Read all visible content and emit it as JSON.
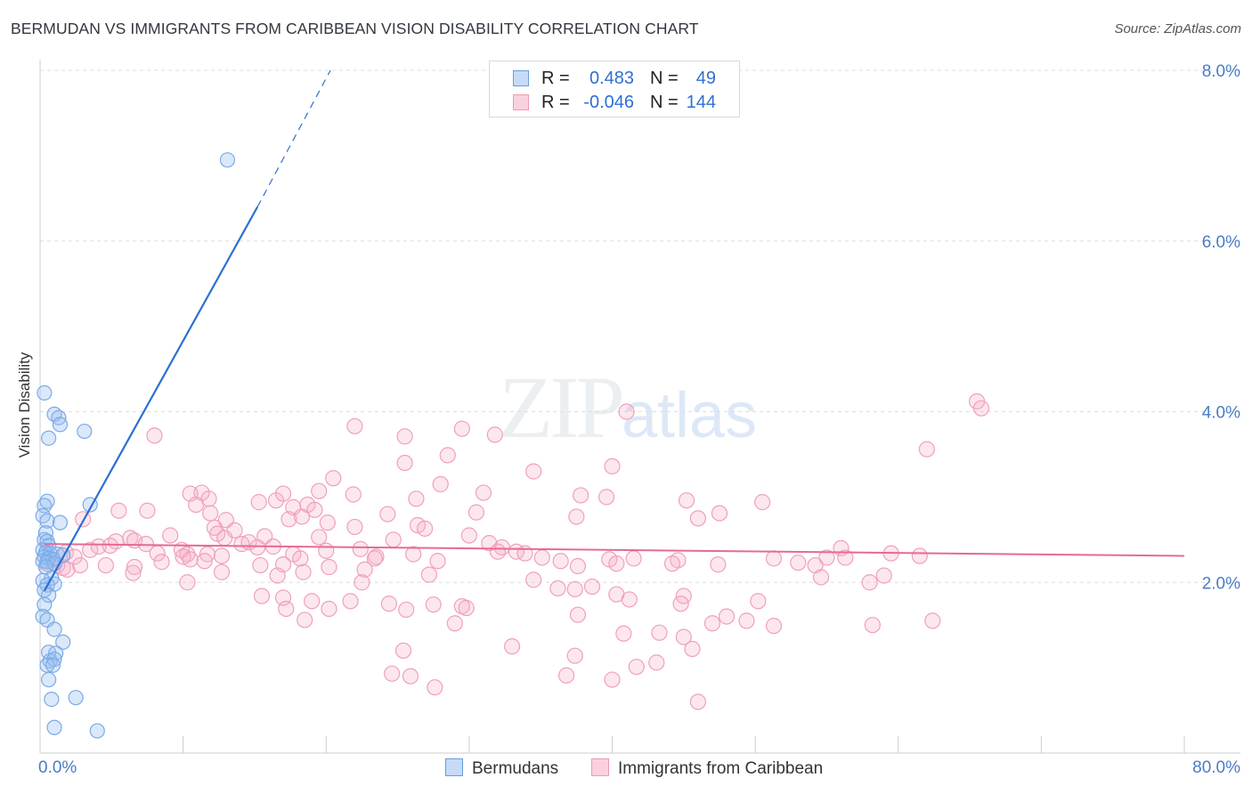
{
  "title": "BERMUDAN VS IMMIGRANTS FROM CARIBBEAN VISION DISABILITY CORRELATION CHART",
  "source": "Source: ZipAtlas.com",
  "watermark": {
    "zip": "ZIP",
    "atlas": "atlas"
  },
  "legend": {
    "rows": [
      {
        "r_label": "R =",
        "r_value": "0.483",
        "n_label": "N =",
        "n_value": "49"
      },
      {
        "r_label": "R =",
        "r_value": "-0.046",
        "n_label": "N =",
        "n_value": "144"
      }
    ]
  },
  "bottom_legend": {
    "series1": "Bermudans",
    "series2": "Immigrants from Caribbean"
  },
  "chart_data": {
    "type": "scatter",
    "title": "BERMUDAN VS IMMIGRANTS FROM CARIBBEAN VISION DISABILITY CORRELATION CHART",
    "xlabel": "",
    "ylabel": "Vision Disability",
    "xlim": [
      0,
      80
    ],
    "ylim": [
      0,
      8.0
    ],
    "x_tick_labels": [
      "0.0%",
      "80.0%"
    ],
    "y_ticks": [
      2.0,
      4.0,
      6.0,
      8.0
    ],
    "y_tick_labels": [
      "2.0%",
      "4.0%",
      "6.0%",
      "8.0%"
    ],
    "grid": true,
    "colors": {
      "series1": "#7aaae8",
      "series1_line": "#2c6fd1",
      "series2": "#f0a0ba",
      "series2_line": "#e56a96"
    },
    "series": [
      {
        "name": "Bermudans",
        "R": 0.483,
        "N": 49,
        "trend": {
          "x0": 0.3,
          "y0": 1.9,
          "x1": 15.2,
          "y1": 6.4,
          "dash_to_x": 20.3,
          "dash_to_y": 8.0
        },
        "points": [
          [
            13.1,
            6.95
          ],
          [
            0.3,
            4.22
          ],
          [
            1.0,
            3.97
          ],
          [
            1.3,
            3.93
          ],
          [
            1.4,
            3.85
          ],
          [
            3.1,
            3.77
          ],
          [
            0.6,
            3.69
          ],
          [
            0.5,
            2.95
          ],
          [
            0.3,
            2.9
          ],
          [
            3.5,
            2.91
          ],
          [
            0.2,
            2.78
          ],
          [
            0.5,
            2.72
          ],
          [
            1.4,
            2.7
          ],
          [
            0.4,
            2.58
          ],
          [
            0.3,
            2.5
          ],
          [
            0.5,
            2.48
          ],
          [
            0.6,
            2.43
          ],
          [
            0.2,
            2.38
          ],
          [
            0.4,
            2.35
          ],
          [
            0.7,
            2.34
          ],
          [
            1.2,
            2.33
          ],
          [
            1.6,
            2.32
          ],
          [
            0.3,
            2.3
          ],
          [
            0.6,
            2.28
          ],
          [
            0.9,
            2.27
          ],
          [
            0.2,
            2.25
          ],
          [
            0.5,
            2.24
          ],
          [
            1.0,
            2.22
          ],
          [
            0.4,
            2.18
          ],
          [
            0.8,
            2.05
          ],
          [
            0.2,
            2.02
          ],
          [
            1.0,
            1.98
          ],
          [
            0.5,
            1.97
          ],
          [
            0.3,
            1.91
          ],
          [
            0.6,
            1.85
          ],
          [
            0.3,
            1.74
          ],
          [
            0.2,
            1.6
          ],
          [
            0.5,
            1.56
          ],
          [
            1.0,
            1.45
          ],
          [
            1.6,
            1.3
          ],
          [
            0.6,
            1.18
          ],
          [
            1.1,
            1.17
          ],
          [
            0.7,
            1.08
          ],
          [
            1.0,
            1.1
          ],
          [
            0.5,
            1.03
          ],
          [
            0.9,
            1.03
          ],
          [
            0.6,
            0.86
          ],
          [
            0.8,
            0.63
          ],
          [
            2.5,
            0.65
          ],
          [
            1.0,
            0.3
          ],
          [
            4.0,
            0.26
          ]
        ]
      },
      {
        "name": "Immigrants from Caribbean",
        "R": -0.046,
        "N": 144,
        "trend": {
          "x0": 0.3,
          "y0": 2.45,
          "x1": 80,
          "y1": 2.31
        },
        "points": [
          [
            65.5,
            4.12
          ],
          [
            65.8,
            4.04
          ],
          [
            41.0,
            4.0
          ],
          [
            22.0,
            3.83
          ],
          [
            29.5,
            3.8
          ],
          [
            8.0,
            3.72
          ],
          [
            25.5,
            3.71
          ],
          [
            31.8,
            3.73
          ],
          [
            28.5,
            3.49
          ],
          [
            62.0,
            3.56
          ],
          [
            25.5,
            3.4
          ],
          [
            34.5,
            3.3
          ],
          [
            40.0,
            3.36
          ],
          [
            20.5,
            3.22
          ],
          [
            28.0,
            3.15
          ],
          [
            10.5,
            3.04
          ],
          [
            11.3,
            3.05
          ],
          [
            11.8,
            2.98
          ],
          [
            16.5,
            2.96
          ],
          [
            17.0,
            3.04
          ],
          [
            19.5,
            3.07
          ],
          [
            21.9,
            3.03
          ],
          [
            26.3,
            2.98
          ],
          [
            31.0,
            3.05
          ],
          [
            37.8,
            3.02
          ],
          [
            39.6,
            3.0
          ],
          [
            45.2,
            2.96
          ],
          [
            50.5,
            2.94
          ],
          [
            10.9,
            2.91
          ],
          [
            17.7,
            2.88
          ],
          [
            18.7,
            2.91
          ],
          [
            19.2,
            2.85
          ],
          [
            5.5,
            2.84
          ],
          [
            7.5,
            2.84
          ],
          [
            11.9,
            2.81
          ],
          [
            15.3,
            2.94
          ],
          [
            24.3,
            2.8
          ],
          [
            30.5,
            2.82
          ],
          [
            37.5,
            2.77
          ],
          [
            46.0,
            2.75
          ],
          [
            47.5,
            2.81
          ],
          [
            13.0,
            2.73
          ],
          [
            3.0,
            2.74
          ],
          [
            17.4,
            2.74
          ],
          [
            18.3,
            2.77
          ],
          [
            20.1,
            2.7
          ],
          [
            22.0,
            2.65
          ],
          [
            26.4,
            2.67
          ],
          [
            26.9,
            2.63
          ],
          [
            12.2,
            2.64
          ],
          [
            13.6,
            2.61
          ],
          [
            9.1,
            2.55
          ],
          [
            12.4,
            2.57
          ],
          [
            15.7,
            2.54
          ],
          [
            19.5,
            2.53
          ],
          [
            24.7,
            2.5
          ],
          [
            30.0,
            2.55
          ],
          [
            31.4,
            2.46
          ],
          [
            32.3,
            2.41
          ],
          [
            33.3,
            2.36
          ],
          [
            56.0,
            2.4
          ],
          [
            1.8,
            2.35
          ],
          [
            2.4,
            2.3
          ],
          [
            3.5,
            2.38
          ],
          [
            4.1,
            2.42
          ],
          [
            4.9,
            2.43
          ],
          [
            5.3,
            2.48
          ],
          [
            6.3,
            2.52
          ],
          [
            6.6,
            2.49
          ],
          [
            7.4,
            2.45
          ],
          [
            8.2,
            2.34
          ],
          [
            9.9,
            2.38
          ],
          [
            10.3,
            2.33
          ],
          [
            11.7,
            2.33
          ],
          [
            12.9,
            2.52
          ],
          [
            14.1,
            2.45
          ],
          [
            14.6,
            2.47
          ],
          [
            15.2,
            2.41
          ],
          [
            16.3,
            2.42
          ],
          [
            17.7,
            2.33
          ],
          [
            20.0,
            2.37
          ],
          [
            22.4,
            2.39
          ],
          [
            23.5,
            2.3
          ],
          [
            26.1,
            2.33
          ],
          [
            32.0,
            2.36
          ],
          [
            33.9,
            2.34
          ],
          [
            39.8,
            2.27
          ],
          [
            41.5,
            2.28
          ],
          [
            44.6,
            2.26
          ],
          [
            51.3,
            2.28
          ],
          [
            56.3,
            2.29
          ],
          [
            59.5,
            2.34
          ],
          [
            61.5,
            2.31
          ],
          [
            6.6,
            2.18
          ],
          [
            8.5,
            2.24
          ],
          [
            10.0,
            2.3
          ],
          [
            10.5,
            2.27
          ],
          [
            11.5,
            2.25
          ],
          [
            12.7,
            2.31
          ],
          [
            15.4,
            2.2
          ],
          [
            17.0,
            2.21
          ],
          [
            18.2,
            2.28
          ],
          [
            20.2,
            2.18
          ],
          [
            22.7,
            2.15
          ],
          [
            23.4,
            2.28
          ],
          [
            27.8,
            2.25
          ],
          [
            35.1,
            2.29
          ],
          [
            36.4,
            2.25
          ],
          [
            37.6,
            2.19
          ],
          [
            40.3,
            2.22
          ],
          [
            44.2,
            2.22
          ],
          [
            47.4,
            2.21
          ],
          [
            53.0,
            2.23
          ],
          [
            54.2,
            2.2
          ],
          [
            55.0,
            2.29
          ],
          [
            0.5,
            2.22
          ],
          [
            1.2,
            2.2
          ],
          [
            1.6,
            2.17
          ],
          [
            1.9,
            2.15
          ],
          [
            2.8,
            2.2
          ],
          [
            4.6,
            2.2
          ],
          [
            6.5,
            2.11
          ],
          [
            12.7,
            2.12
          ],
          [
            16.6,
            2.08
          ],
          [
            18.4,
            2.12
          ],
          [
            22.5,
            2.0
          ],
          [
            27.2,
            2.09
          ],
          [
            34.5,
            2.03
          ],
          [
            36.2,
            1.93
          ],
          [
            37.4,
            1.92
          ],
          [
            38.6,
            1.95
          ],
          [
            40.3,
            1.86
          ],
          [
            41.2,
            1.8
          ],
          [
            45.0,
            1.84
          ],
          [
            50.2,
            1.78
          ],
          [
            54.6,
            2.06
          ],
          [
            58.0,
            2.0
          ],
          [
            59.0,
            2.08
          ],
          [
            10.3,
            2.0
          ],
          [
            15.5,
            1.84
          ],
          [
            17.0,
            1.82
          ],
          [
            19.0,
            1.78
          ],
          [
            20.2,
            1.69
          ],
          [
            24.4,
            1.75
          ],
          [
            27.5,
            1.74
          ],
          [
            29.5,
            1.72
          ],
          [
            17.2,
            1.69
          ],
          [
            21.7,
            1.78
          ],
          [
            25.6,
            1.68
          ],
          [
            29.8,
            1.7
          ],
          [
            37.6,
            1.62
          ],
          [
            44.8,
            1.75
          ],
          [
            48.0,
            1.6
          ],
          [
            18.5,
            1.56
          ],
          [
            29.0,
            1.52
          ],
          [
            40.8,
            1.4
          ],
          [
            43.3,
            1.41
          ],
          [
            45.0,
            1.36
          ],
          [
            47.0,
            1.52
          ],
          [
            49.4,
            1.55
          ],
          [
            51.3,
            1.49
          ],
          [
            58.2,
            1.5
          ],
          [
            62.4,
            1.55
          ],
          [
            25.4,
            1.2
          ],
          [
            33.0,
            1.25
          ],
          [
            37.4,
            1.14
          ],
          [
            41.7,
            1.01
          ],
          [
            43.1,
            1.06
          ],
          [
            45.6,
            1.22
          ],
          [
            24.6,
            0.93
          ],
          [
            36.8,
            0.91
          ],
          [
            25.9,
            0.9
          ],
          [
            40.0,
            0.86
          ],
          [
            27.6,
            0.77
          ],
          [
            46.0,
            0.6
          ]
        ]
      }
    ]
  }
}
